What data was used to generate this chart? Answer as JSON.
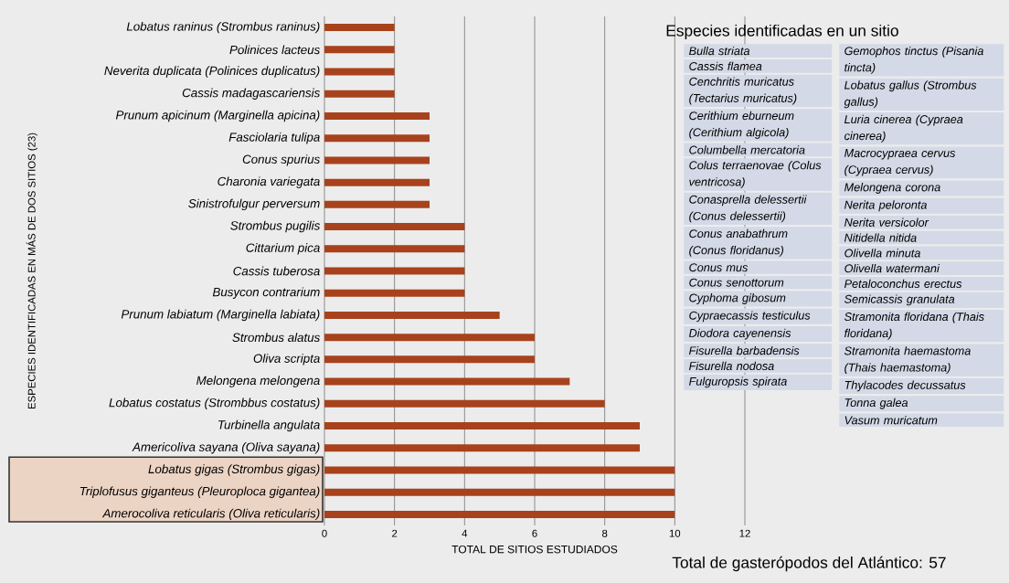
{
  "chart_data": {
    "type": "bar",
    "orientation": "horizontal",
    "ylabel": "ESPECIES  IDENTIFICADAS EN MÁS DE DOS SITIOS (23)",
    "xlabel": "TOTAL DE SITIOS ESTUDIADOS",
    "categories": [
      "Lobatus raninus (Strombus raninus)",
      "Polinices lacteus",
      "Neverita duplicata (Polinices duplicatus)",
      "Cassis madagascariensis",
      "Prunum apicinum (Marginella apicina)",
      "Fasciolaria tulipa",
      "Conus spurius",
      "Charonia variegata",
      "Sinistrofulgur perversum",
      "Strombus pugilis",
      "Cittarium pica",
      "Cassis tuberosa",
      "Busycon contrarium",
      "Prunum labiatum (Marginella labiata)",
      "Strombus alatus",
      "Oliva scripta",
      "Melongena melongena",
      "Lobatus costatus (Strombbus costatus)",
      "Turbinella angulata",
      "Americoliva sayana (Oliva sayana)",
      "Lobatus gigas (Strombus gigas)",
      "Triplofusus giganteus (Pleuroploca gigantea)",
      "Amerocoliva reticularis (Oliva reticularis)"
    ],
    "values": [
      2,
      2,
      2,
      2,
      3,
      3,
      3,
      3,
      3,
      4,
      4,
      4,
      4,
      5,
      6,
      6,
      7,
      8,
      9,
      9,
      10,
      10,
      10
    ],
    "color": "#a8421c",
    "xlim": [
      0,
      12
    ],
    "xticks": [
      0,
      2,
      4,
      6,
      8,
      10,
      12
    ],
    "grid": "x",
    "annotations": [
      "Especies identificadas en un sitio",
      "Bulla striata",
      "Cassis flamea",
      "Cenchritis muricatus (Tectarius muricatus)",
      "Cerithium eburneum (Cerithium algicola)",
      "Columbella mercatoria",
      "Colus terraenovae (Colus ventricosa)",
      "Conasprella delessertii (Conus delessertii)",
      "Conus anabathrum (Conus floridanus)",
      "Conus mus",
      "Conus senottorum",
      "Cyphoma gibosum",
      "Cypraecassis testiculus",
      "Diodora cayenensis",
      "Fisurella barbadensis",
      "Fisurella nodosa",
      "Fulguropsis spirata",
      "Gemophos tinctus (Pisania tincta)",
      "Lobatus gallus (Strombus gallus)",
      "Luria cinerea (Cypraea cinerea)",
      "Macrocypraea cervus (Cypraea cervus)",
      "Melongena corona",
      "Nerita peloronta",
      "Nerita versicolor",
      "Nitidella nitida",
      "Olivella minuta",
      "Olivella watermani",
      "Petaloconchus erectus",
      "Semicassis granulata",
      "Stramonita floridana (Thais floridana)",
      "Stramonita haemastoma (Thais haemastoma)",
      "Thylacodes decussatus",
      "Tonna galea",
      "Vasum muricatum",
      "Total de gasterópodos del Atlántico: 57"
    ]
  }
}
